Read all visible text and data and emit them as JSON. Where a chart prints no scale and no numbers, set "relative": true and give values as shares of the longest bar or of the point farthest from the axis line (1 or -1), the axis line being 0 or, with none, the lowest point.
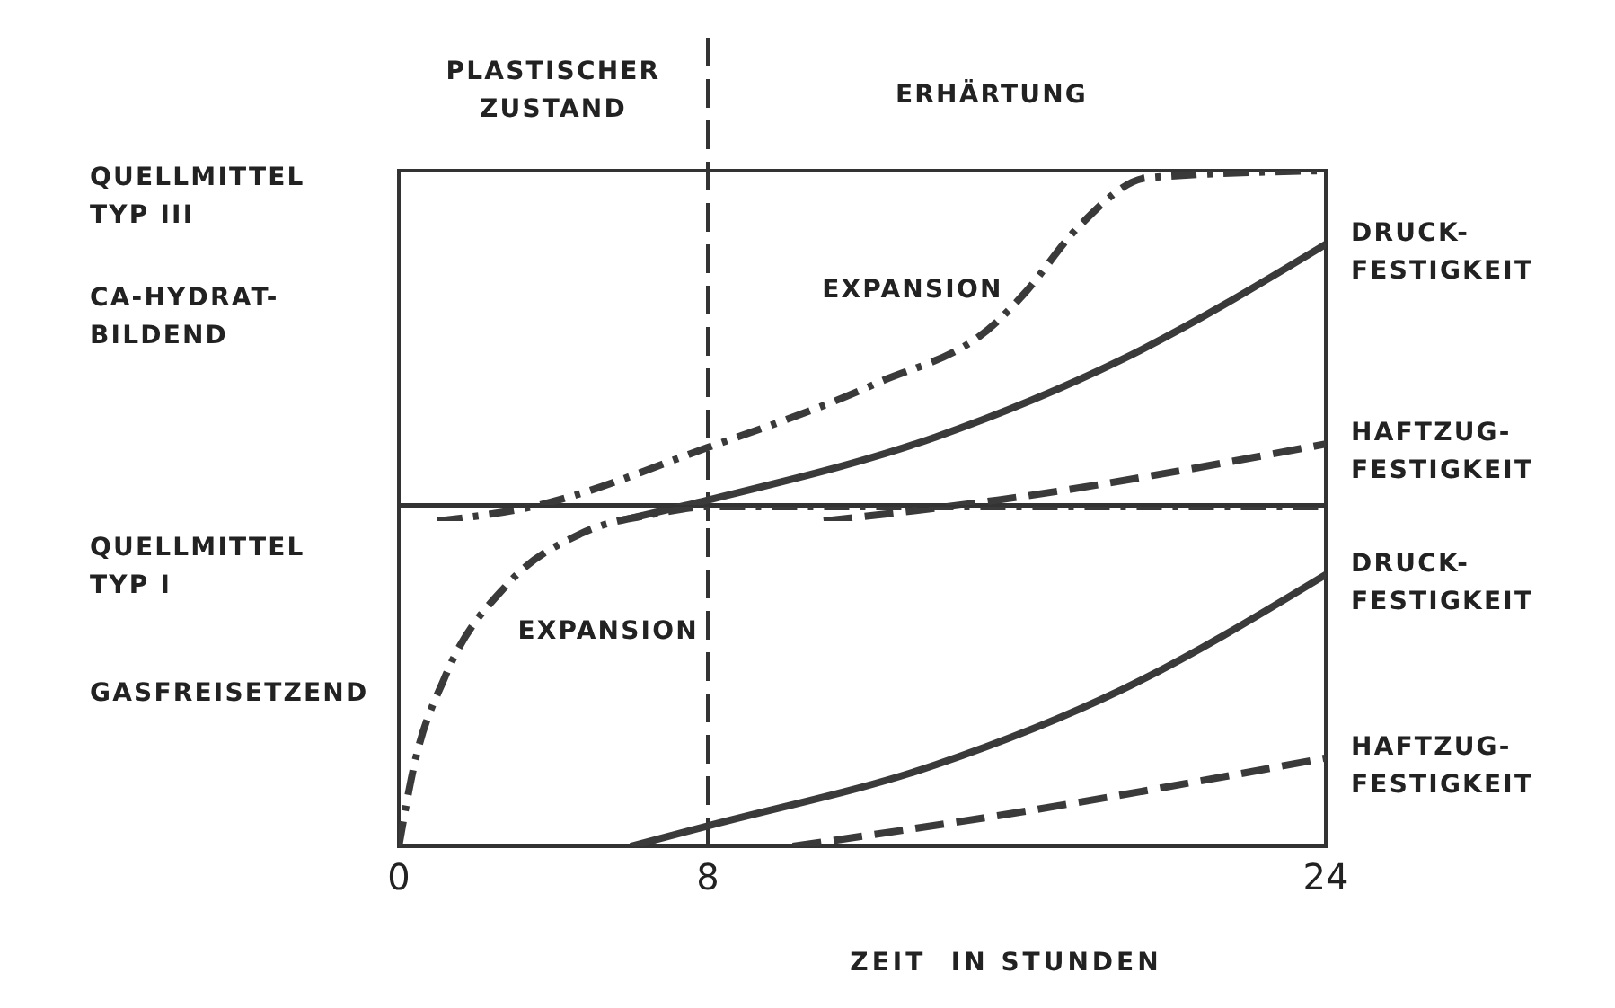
{
  "chart_data": [
    {
      "type": "line",
      "relative": true,
      "xlim": [
        0,
        24
      ],
      "tick_labels": false,
      "grid": false,
      "legend": false,
      "marker": "none",
      "annotations": [
        "PLASTISCHER\nZUSTAND",
        "ERHÄRTUNG",
        "QUELLMITTEL\nTYP III",
        "CA-HYDRAT-\nBILDEND"
      ],
      "ref_lines": [
        {
          "axis": "x",
          "value": 8,
          "line_style": "dashed",
          "color": "#333333"
        }
      ],
      "series": [
        {
          "name": "EXPANSION",
          "color": "#3a3a3a",
          "line_style": "dashdot",
          "x": [
            1.0,
            3.4,
            8,
            12.3,
            15.5,
            16.2,
            17.6,
            19.4,
            24
          ],
          "values": [
            0,
            0.04,
            0.21,
            0.39,
            0.57,
            0.65,
            0.84,
            0.98,
            1
          ]
        },
        {
          "name": "DRUCK-\nFESTIGKEIT",
          "color": "#3a3a3a",
          "line_style": "solid",
          "x": [
            5.7,
            8,
            13.9,
            18.7,
            24
          ],
          "values": [
            0,
            0.06,
            0.24,
            0.46,
            0.79
          ]
        },
        {
          "name": "HAFTZUG-\nFESTIGKEIT",
          "color": "#3a3a3a",
          "line_style": "dashed",
          "x": [
            11,
            15.5,
            24
          ],
          "values": [
            0,
            0.06,
            0.22
          ]
        }
      ]
    },
    {
      "type": "line",
      "relative": true,
      "xlim": [
        0,
        24
      ],
      "xticks": [
        0,
        8,
        24
      ],
      "tick_labels": "x",
      "grid": false,
      "legend": false,
      "marker": "none",
      "xlabel": "ZEIT  IN STUNDEN",
      "annotations": [
        "QUELLMITTEL\nTYP I",
        "GASFREISETZEND"
      ],
      "ref_lines": [
        {
          "axis": "x",
          "value": 8,
          "line_style": "dashed",
          "color": "#333333"
        }
      ],
      "series": [
        {
          "name": "EXPANSION",
          "color": "#3a3a3a",
          "line_style": "dashdot",
          "x": [
            0,
            0.4,
            1.2,
            2.8,
            4.7,
            6.7,
            8,
            24
          ],
          "values": [
            0,
            0.24,
            0.5,
            0.77,
            0.92,
            0.98,
            1,
            1
          ]
        },
        {
          "name": "DRUCK-\nFESTIGKEIT",
          "color": "#3a3a3a",
          "line_style": "solid",
          "x": [
            6.0,
            8,
            13.9,
            18.7,
            24
          ],
          "values": [
            0,
            0.06,
            0.24,
            0.46,
            0.8
          ]
        },
        {
          "name": "HAFTZUG-\nFESTIGKEIT",
          "color": "#3a3a3a",
          "line_style": "dashed",
          "x": [
            10.2,
            15.5,
            24
          ],
          "values": [
            0,
            0.09,
            0.26
          ]
        }
      ]
    }
  ]
}
